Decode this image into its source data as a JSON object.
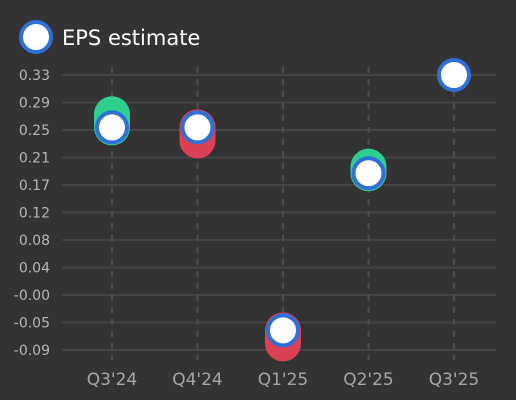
{
  "chart_data": {
    "type": "scatter",
    "categories": [
      "Q3'24",
      "Q4'24",
      "Q1'25",
      "Q2'25",
      "Q3'25"
    ],
    "series": [
      {
        "name": "EPS estimate",
        "values": [
          0.25,
          0.25,
          -0.06,
          0.18,
          0.33
        ]
      }
    ],
    "actual_values": [
      0.27,
      0.23,
      -0.08,
      0.19,
      null
    ],
    "y_ticks": [
      "0.33",
      "0.29",
      "0.25",
      "0.21",
      "0.17",
      "0.12",
      "0.08",
      "0.04",
      "-0.00",
      "-0.05",
      "-0.09"
    ],
    "ylim": [
      -0.09,
      0.33
    ],
    "grid": true,
    "legend_position": "top-left"
  },
  "colors": {
    "background": "#333333",
    "grid": "#444444",
    "estimate_fill": "#ffffff",
    "estimate_stroke": "#2f6fd6",
    "beat": "#2ecf8f",
    "miss": "#db4055"
  }
}
